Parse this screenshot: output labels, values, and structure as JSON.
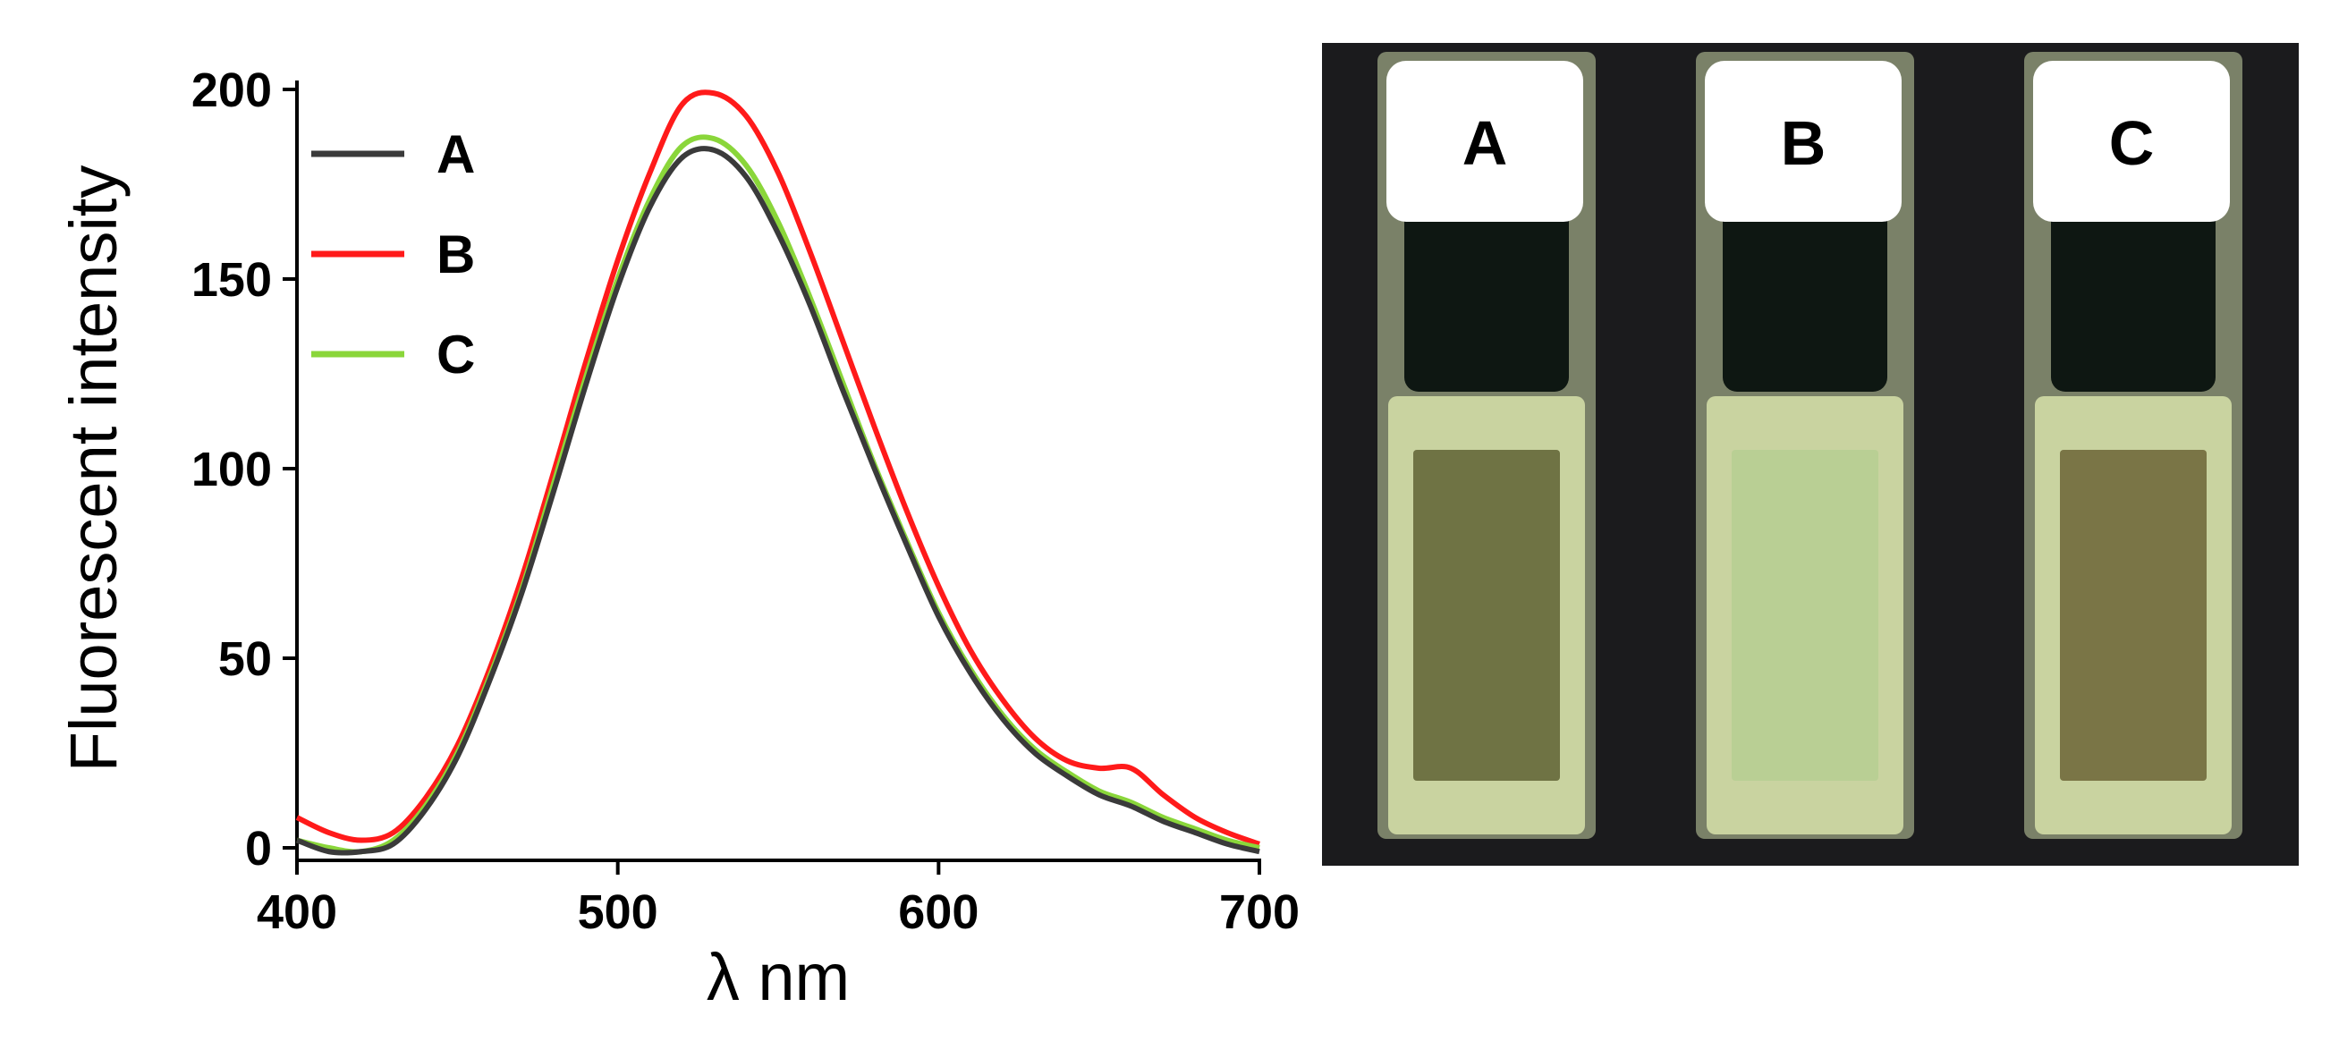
{
  "chart_data": {
    "type": "line",
    "xlabel": "λ nm",
    "ylabel": "Fluorescent intensity",
    "xlim": [
      400,
      700
    ],
    "ylim": [
      0,
      200
    ],
    "xticks": [
      400,
      500,
      600,
      700
    ],
    "yticks": [
      0,
      50,
      100,
      150,
      200
    ],
    "grid": false,
    "legend_position": "top-left",
    "series": [
      {
        "name": "A",
        "color": "#3a3a3a",
        "x": [
          400,
          410,
          420,
          430,
          440,
          450,
          460,
          470,
          480,
          490,
          500,
          510,
          520,
          530,
          540,
          550,
          560,
          570,
          580,
          590,
          600,
          610,
          620,
          630,
          640,
          650,
          660,
          670,
          680,
          690,
          700
        ],
        "y": [
          2,
          -1,
          -1,
          1,
          10,
          24,
          44,
          67,
          94,
          122,
          148,
          169,
          182,
          184,
          177,
          162,
          143,
          121,
          100,
          80,
          61,
          46,
          34,
          25,
          19,
          14,
          11,
          7,
          4,
          1,
          -1
        ]
      },
      {
        "name": "B",
        "color": "#ff1a1a",
        "x": [
          400,
          410,
          420,
          430,
          440,
          450,
          460,
          470,
          480,
          490,
          500,
          510,
          520,
          530,
          540,
          550,
          560,
          570,
          580,
          590,
          600,
          610,
          620,
          630,
          640,
          650,
          660,
          670,
          680,
          690,
          700
        ],
        "y": [
          8,
          4,
          2,
          4,
          13,
          27,
          47,
          71,
          99,
          128,
          155,
          178,
          196,
          199,
          193,
          178,
          157,
          134,
          111,
          89,
          69,
          52,
          39,
          29,
          23,
          21,
          21,
          14,
          8,
          4,
          1
        ]
      },
      {
        "name": "C",
        "color": "#8ad63a",
        "x": [
          400,
          410,
          420,
          430,
          440,
          450,
          460,
          470,
          480,
          490,
          500,
          510,
          520,
          530,
          540,
          550,
          560,
          570,
          580,
          590,
          600,
          610,
          620,
          630,
          640,
          650,
          660,
          670,
          680,
          690,
          700
        ],
        "y": [
          2,
          0,
          -1,
          2,
          11,
          25,
          45,
          68,
          96,
          124,
          150,
          171,
          185,
          187,
          180,
          165,
          145,
          123,
          101,
          81,
          62,
          47,
          35,
          26,
          20,
          15,
          12,
          8,
          5,
          2,
          0
        ]
      }
    ]
  },
  "photo": {
    "background_color": "#1b1b1d",
    "cuvettes": [
      {
        "label": "A",
        "liquid_color": "#6f7344"
      },
      {
        "label": "B",
        "liquid_color": "#b9cf94"
      },
      {
        "label": "C",
        "liquid_color": "#7a7546"
      }
    ]
  }
}
